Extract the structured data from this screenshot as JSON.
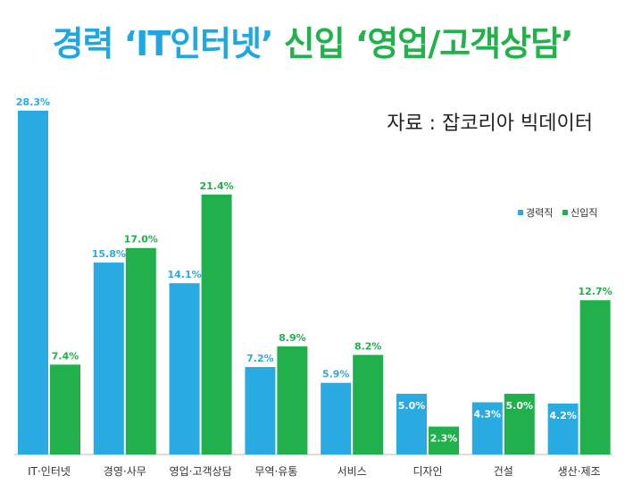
{
  "title": {
    "part1": "경력 ‘IT인터넷’",
    "part2": "신입 ‘영업/고객상담’"
  },
  "source": "자료 : 잡코리아 빅데이터",
  "colors": {
    "career": "#29abe2",
    "new": "#21b04b"
  },
  "chart_data": {
    "type": "bar",
    "categories": [
      "IT·인터넷",
      "경영·사무",
      "영업·고객상담",
      "무역·유통",
      "서비스",
      "디자인",
      "건설",
      "생산·제조"
    ],
    "series": [
      {
        "name": "경력직",
        "values": [
          28.3,
          15.8,
          14.1,
          7.2,
          5.9,
          5.0,
          4.3,
          4.2
        ]
      },
      {
        "name": "신입직",
        "values": [
          7.4,
          17.0,
          21.4,
          8.9,
          8.2,
          2.3,
          5.0,
          12.7
        ]
      }
    ],
    "value_labels": [
      [
        "28.3%",
        "15.8%",
        "14.1%",
        "7.2%",
        "5.9%",
        "5.0%",
        "4.3%",
        "4.2%"
      ],
      [
        "7.4%",
        "17.0%",
        "21.4%",
        "8.9%",
        "8.2%",
        "2.3%",
        "5.0%",
        "12.7%"
      ]
    ],
    "ylim": [
      0,
      28.3
    ],
    "grid": false,
    "legend_position": "top-right"
  }
}
